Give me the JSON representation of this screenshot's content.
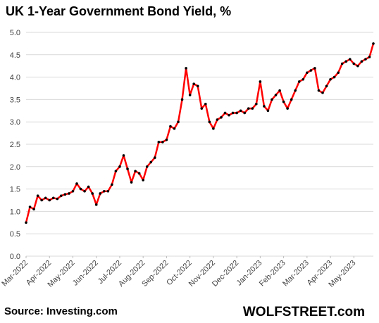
{
  "chart_data": {
    "type": "line",
    "title": "UK 1-Year Government Bond Yield, %",
    "source": "Source: Investing.com",
    "brand": "WOLFSTREET.com",
    "values": [
      0.75,
      1.1,
      1.05,
      1.35,
      1.25,
      1.3,
      1.25,
      1.3,
      1.28,
      1.35,
      1.38,
      1.4,
      1.45,
      1.62,
      1.5,
      1.45,
      1.55,
      1.4,
      1.15,
      1.4,
      1.45,
      1.45,
      1.6,
      1.9,
      2.0,
      2.25,
      1.95,
      1.65,
      1.9,
      1.85,
      1.7,
      2.0,
      2.1,
      2.2,
      2.55,
      2.55,
      2.6,
      2.9,
      2.85,
      3.0,
      3.5,
      4.2,
      3.6,
      3.85,
      3.8,
      3.3,
      3.4,
      3.0,
      2.85,
      3.05,
      3.1,
      3.2,
      3.15,
      3.2,
      3.2,
      3.25,
      3.2,
      3.3,
      3.3,
      3.4,
      3.9,
      3.35,
      3.25,
      3.5,
      3.6,
      3.7,
      3.45,
      3.3,
      3.5,
      3.7,
      3.9,
      3.95,
      4.1,
      4.15,
      4.2,
      3.7,
      3.65,
      3.8,
      3.95,
      4.0,
      4.1,
      4.3,
      4.35,
      4.4,
      4.3,
      4.25,
      4.35,
      4.4,
      4.45,
      4.75
    ],
    "color": "#ff0000",
    "marker_color": "#000000",
    "xlim": [
      0,
      89
    ],
    "xticks": [
      {
        "value": 0,
        "label": "Mar-2022"
      },
      {
        "value": 6,
        "label": "Apr-2022"
      },
      {
        "value": 12,
        "label": "May-2022"
      },
      {
        "value": 18,
        "label": "Jun-2022"
      },
      {
        "value": 24,
        "label": "Jul-2022"
      },
      {
        "value": 30,
        "label": "Aug-2022"
      },
      {
        "value": 36,
        "label": "Sep-2022"
      },
      {
        "value": 42,
        "label": "Oct-2022"
      },
      {
        "value": 48,
        "label": "Nov-2022"
      },
      {
        "value": 54,
        "label": "Dec-2022"
      },
      {
        "value": 60,
        "label": "Jan-2023"
      },
      {
        "value": 66,
        "label": "Feb-2023"
      },
      {
        "value": 72,
        "label": "Mar-2023"
      },
      {
        "value": 78,
        "label": "Apr-2023"
      },
      {
        "value": 84,
        "label": "May-2023"
      }
    ],
    "ylim": [
      0,
      5
    ],
    "yticks": [
      {
        "value": 0,
        "label": "0.0"
      },
      {
        "value": 0.5,
        "label": "0.5"
      },
      {
        "value": 1,
        "label": "1.0"
      },
      {
        "value": 1.5,
        "label": "1.5"
      },
      {
        "value": 2,
        "label": "2.0"
      },
      {
        "value": 2.5,
        "label": "2.5"
      },
      {
        "value": 3,
        "label": "3.0"
      },
      {
        "value": 3.5,
        "label": "3.5"
      },
      {
        "value": 4,
        "label": "4.0"
      },
      {
        "value": 4.5,
        "label": "4.5"
      },
      {
        "value": 5,
        "label": "5.0"
      }
    ],
    "grid": true
  }
}
